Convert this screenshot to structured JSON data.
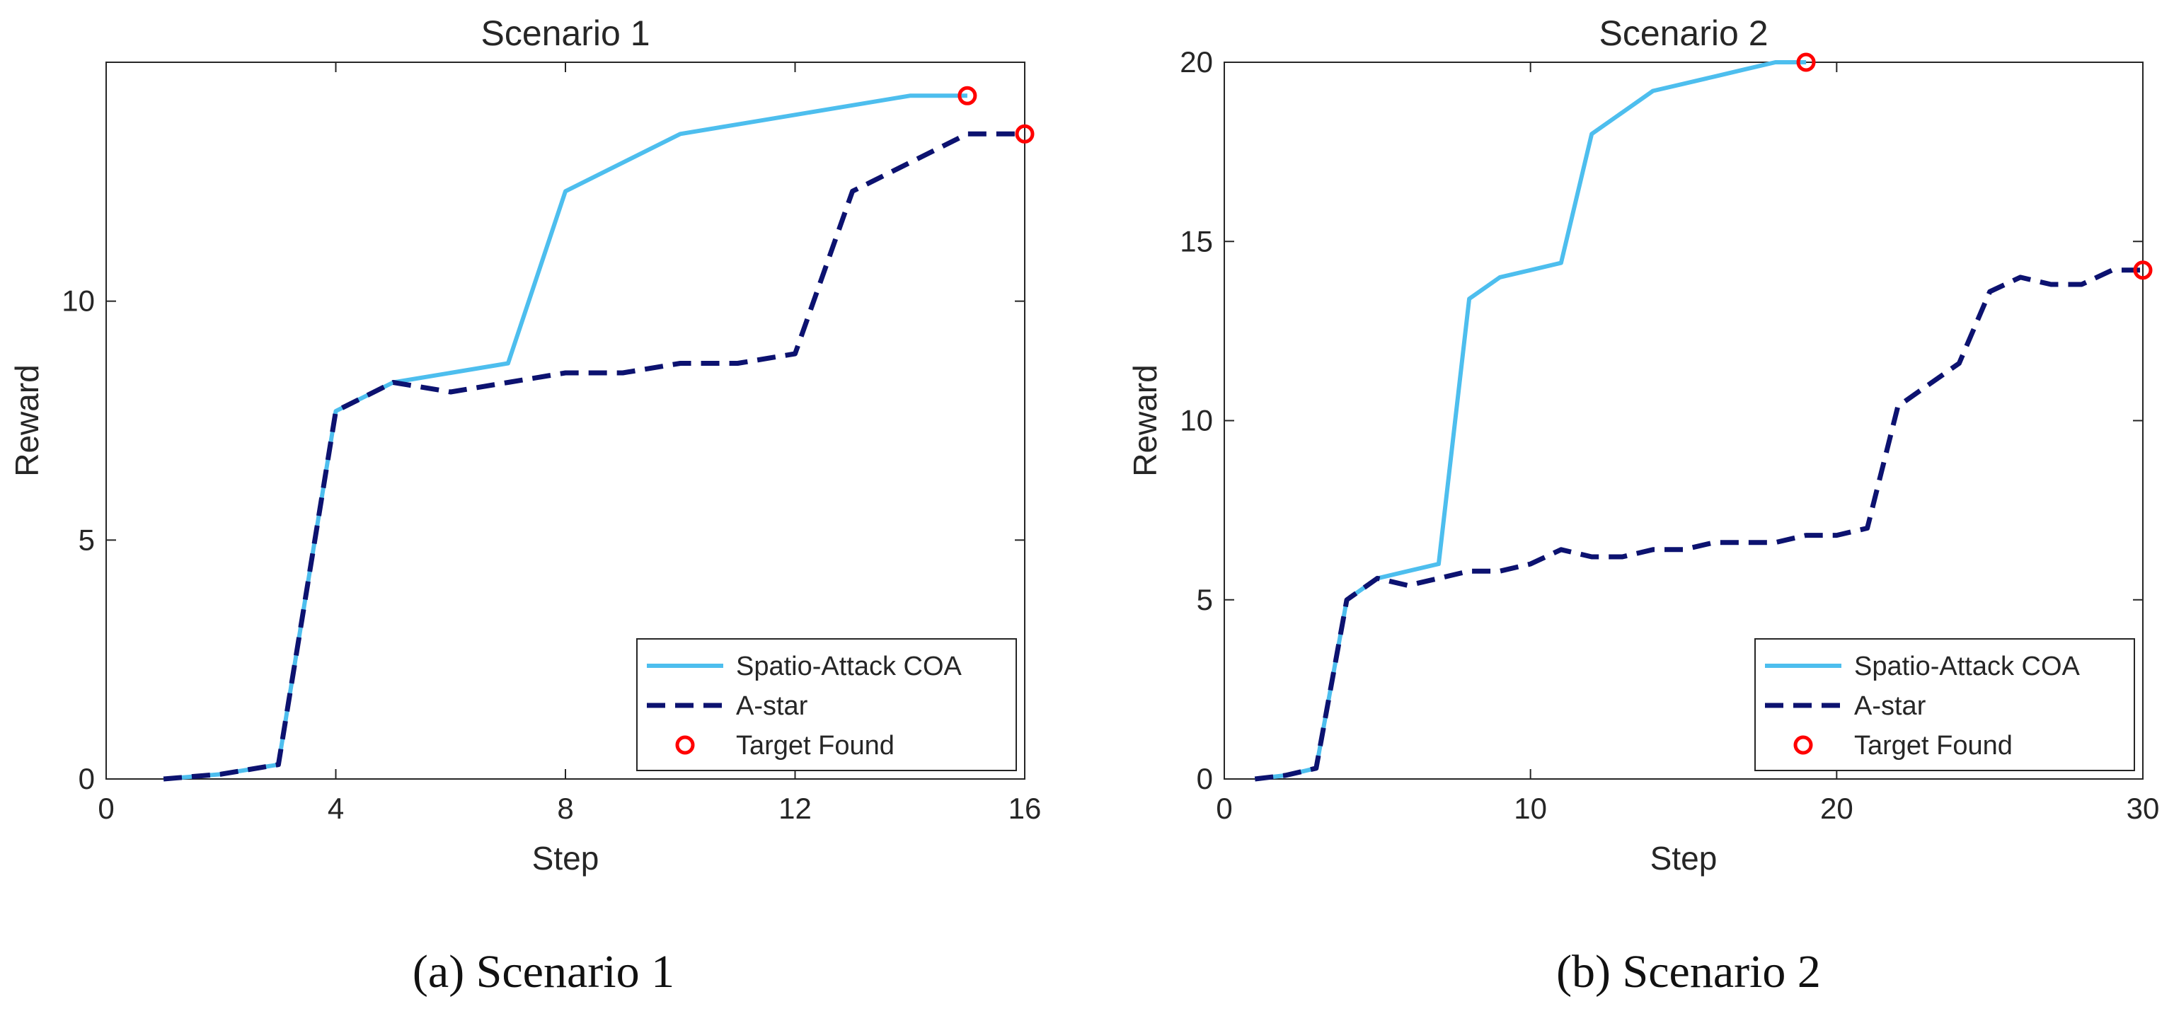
{
  "chart_data": [
    {
      "type": "line",
      "title": "Scenario 1",
      "caption": "(a) Scenario 1",
      "xlabel": "Step",
      "ylabel": "Reward",
      "xlim": [
        0,
        16
      ],
      "ylim": [
        0,
        15
      ],
      "xticks": [
        0,
        4,
        8,
        12,
        16
      ],
      "xtick_labels": [
        "0",
        "4",
        "8",
        "12",
        "16"
      ],
      "yticks": [
        0,
        5,
        10
      ],
      "ytick_labels": [
        "0",
        "5",
        "10"
      ],
      "grid": false,
      "legend_position": "bottom-right",
      "series": [
        {
          "name": "Spatio-Attack COA",
          "style": "solid",
          "color": "#4DBEEE",
          "x": [
            1,
            2,
            3,
            4,
            5,
            6,
            7,
            8,
            9,
            10,
            11,
            12,
            13,
            14,
            15
          ],
          "y": [
            0,
            0.1,
            0.3,
            7.7,
            8.3,
            8.5,
            8.7,
            12.3,
            12.9,
            13.5,
            13.7,
            13.9,
            14.1,
            14.3,
            14.3
          ]
        },
        {
          "name": "A-star",
          "style": "dashed",
          "color": "#0C1270",
          "x": [
            1,
            2,
            3,
            4,
            5,
            6,
            7,
            8,
            9,
            10,
            11,
            12,
            13,
            14,
            15,
            16
          ],
          "y": [
            0,
            0.1,
            0.3,
            7.7,
            8.3,
            8.1,
            8.3,
            8.5,
            8.5,
            8.7,
            8.7,
            8.9,
            12.3,
            12.9,
            13.5,
            13.5
          ]
        }
      ],
      "target_found": {
        "name": "Target Found",
        "color": "#FF0000",
        "points": [
          {
            "x": 15,
            "y": 14.3
          },
          {
            "x": 16,
            "y": 13.5
          }
        ]
      }
    },
    {
      "type": "line",
      "title": "Scenario 2",
      "caption": "(b) Scenario 2",
      "xlabel": "Step",
      "ylabel": "Reward",
      "xlim": [
        0,
        30
      ],
      "ylim": [
        0,
        20
      ],
      "xticks": [
        0,
        10,
        20,
        30
      ],
      "xtick_labels": [
        "0",
        "10",
        "20",
        "30"
      ],
      "yticks": [
        0,
        5,
        10,
        15,
        20
      ],
      "ytick_labels": [
        "0",
        "5",
        "10",
        "15",
        "20"
      ],
      "grid": false,
      "legend_position": "bottom-right",
      "series": [
        {
          "name": "Spatio-Attack COA",
          "style": "solid",
          "color": "#4DBEEE",
          "x": [
            1,
            2,
            3,
            4,
            5,
            6,
            7,
            8,
            9,
            10,
            11,
            12,
            13,
            14,
            15,
            16,
            17,
            18,
            19
          ],
          "y": [
            0,
            0.1,
            0.3,
            5,
            5.6,
            5.8,
            6,
            13.4,
            14,
            14.2,
            14.4,
            18,
            18.6,
            19.2,
            19.4,
            19.6,
            19.8,
            20,
            20
          ]
        },
        {
          "name": "A-star",
          "style": "dashed",
          "color": "#0C1270",
          "x": [
            1,
            2,
            3,
            4,
            5,
            6,
            7,
            8,
            9,
            10,
            11,
            12,
            13,
            14,
            15,
            16,
            17,
            18,
            19,
            20,
            21,
            22,
            23,
            24,
            25,
            26,
            27,
            28,
            29,
            30
          ],
          "y": [
            0,
            0.1,
            0.3,
            5,
            5.6,
            5.4,
            5.6,
            5.8,
            5.8,
            6,
            6.4,
            6.2,
            6.2,
            6.4,
            6.4,
            6.6,
            6.6,
            6.6,
            6.8,
            6.8,
            7,
            10.4,
            11,
            11.6,
            13.6,
            14,
            13.8,
            13.8,
            14.2,
            14.2
          ]
        }
      ],
      "target_found": {
        "name": "Target Found",
        "color": "#FF0000",
        "points": [
          {
            "x": 19,
            "y": 20
          },
          {
            "x": 30,
            "y": 14.2
          }
        ]
      }
    }
  ]
}
